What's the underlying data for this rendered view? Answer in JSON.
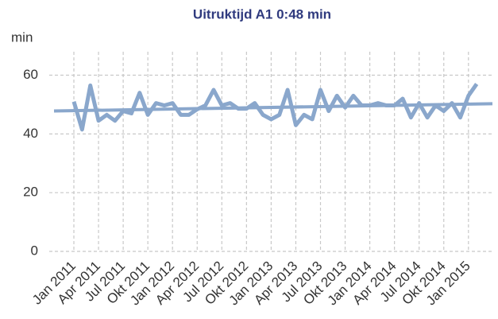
{
  "chart_data": {
    "type": "line",
    "title": "Uitruktijd A1 0:48 min",
    "y_label": "min",
    "categories": [
      "Jan 2011",
      null,
      null,
      "Apr 2011",
      null,
      null,
      "Jul 2011",
      null,
      null,
      "Okt 2011",
      null,
      null,
      "Jan 2012",
      null,
      null,
      "Apr 2012",
      null,
      null,
      "Jul 2012",
      null,
      null,
      "Okt 2012",
      null,
      null,
      "Jan 2013",
      null,
      null,
      "Apr 2013",
      null,
      null,
      "Jul 2013",
      null,
      null,
      "Okt 2013",
      null,
      null,
      "Jan 2014",
      null,
      null,
      "Apr 2014",
      null,
      null,
      "Jul 2014",
      null,
      null,
      "Okt 2014",
      null,
      null,
      "Jan 2015",
      null
    ],
    "series": [
      {
        "color": "#8aa7cc",
        "values": [
          51,
          41.5,
          56.5,
          44.5,
          46.5,
          44.5,
          47.8,
          47,
          54,
          46.5,
          50.5,
          49.7,
          50.5,
          46.5,
          46.5,
          48.4,
          49.7,
          55,
          49.7,
          50.5,
          48.6,
          48.6,
          50.5,
          46.5,
          45,
          46.5,
          55,
          43,
          46.5,
          45,
          55,
          47.8,
          53,
          49,
          53,
          49.7,
          49.7,
          50.5,
          49.7,
          49.7,
          52,
          45.6,
          50.5,
          45.6,
          49.7,
          47.8,
          50.5,
          45.6,
          53,
          57
        ]
      }
    ],
    "trendline": {
      "color": "#8aa7cc",
      "values": [
        47.8,
        50.3
      ]
    },
    "ylim": [
      0,
      68
    ],
    "yticks": [
      0,
      20,
      40,
      60
    ],
    "grid": true
  }
}
